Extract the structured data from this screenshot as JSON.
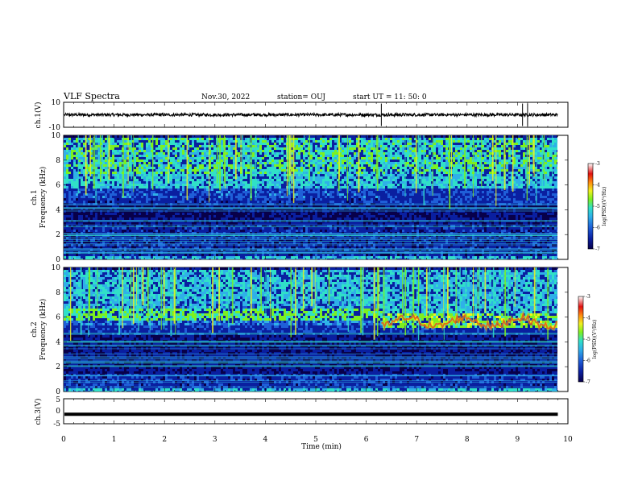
{
  "header": {
    "title": "VLF Spectra",
    "date": "Nov.30, 2022",
    "station": "station= OUJ",
    "start": "start  UT =   11: 50: 0"
  },
  "colors": {
    "background": "#ffffff",
    "frame": "#000000",
    "spectrogram_stops": [
      "#08004a",
      "#0a1fa0",
      "#1f5fd8",
      "#2fb0e8",
      "#30e0c8",
      "#7cf020",
      "#f0f020",
      "#ff8a10",
      "#e01010",
      "#ffffff"
    ]
  },
  "chart_data": [
    {
      "type": "line",
      "name": "ch1-waveform",
      "ylabel": "ch.1(V)",
      "ylim": [
        -10,
        10
      ],
      "yticks": [
        "10",
        "-10"
      ],
      "x": [
        0,
        10
      ],
      "baseline": 0,
      "amplitude": 1.2,
      "spikes_at_min": [
        6.3,
        9.1,
        9.2
      ]
    },
    {
      "type": "heatmap",
      "name": "ch1-spectrogram",
      "ylabel": "ch.1\nFrequency (kHz)",
      "ylabel_lines": [
        "ch.1",
        "Frequency  (kHz)"
      ],
      "ylim": [
        0,
        10
      ],
      "yticks": [
        "0",
        "2",
        "4",
        "6",
        "8",
        "10"
      ],
      "xlim": [
        0,
        10
      ],
      "data_extent_min": 9.8,
      "band_edge_khz": 5.8,
      "colorbar": {
        "range": [
          -7,
          -3
        ],
        "ticks": [
          "-3",
          "-4",
          "-5",
          "-6",
          "-7"
        ],
        "label": "log(PSD)(V²/Hz)"
      }
    },
    {
      "type": "heatmap",
      "name": "ch2-spectrogram",
      "ylabel_lines": [
        "ch.2",
        "Frequency  (kHz)"
      ],
      "ylim": [
        0,
        10
      ],
      "yticks": [
        "0",
        "2",
        "4",
        "6",
        "8",
        "10"
      ],
      "xlim": [
        0,
        10
      ],
      "data_extent_min": 9.8,
      "band_khz": 6.2,
      "emission_start_min": 6.3,
      "colorbar": {
        "range": [
          -7,
          -3
        ],
        "ticks": [
          "-3",
          "-4",
          "-5",
          "-6",
          "-7"
        ],
        "label": "log(PSD)(V²/Hz)"
      }
    },
    {
      "type": "line",
      "name": "ch3-waveform",
      "ylabel": "ch.3(V)",
      "ylim": [
        -5,
        5
      ],
      "yticks": [
        "5",
        "0",
        "-5"
      ],
      "x": [
        0,
        10
      ],
      "baseline": -1.2
    }
  ],
  "xaxis": {
    "label": "Time  (min)",
    "ticks": [
      "0",
      "1",
      "2",
      "3",
      "4",
      "5",
      "6",
      "7",
      "8",
      "9",
      "10"
    ],
    "xlim": [
      0,
      10
    ]
  }
}
